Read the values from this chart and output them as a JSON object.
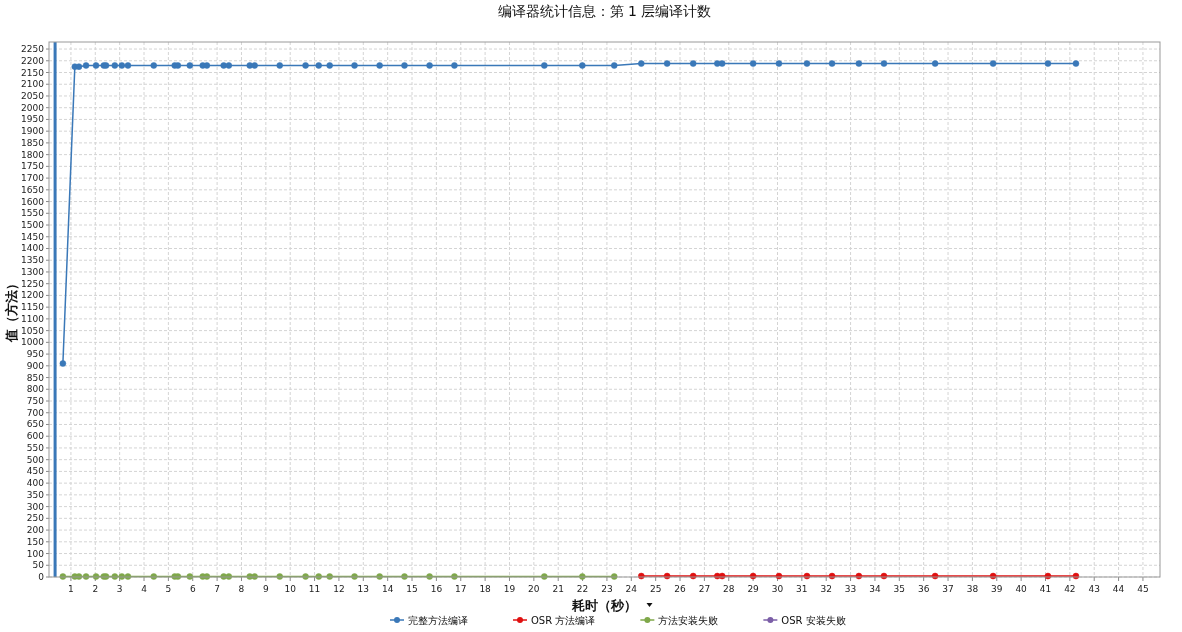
{
  "chart_data": {
    "type": "line",
    "title": "编译器统计信息：第 1 层编译计数",
    "xlabel": "耗时（秒）",
    "ylabel": "值（方法）",
    "x": [
      0.67,
      1.16,
      1.33,
      1.62,
      2.03,
      2.35,
      2.44,
      2.8,
      3.09,
      3.34,
      4.4,
      5.26,
      5.39,
      5.88,
      6.41,
      6.58,
      7.27,
      7.48,
      8.34,
      8.54,
      9.57,
      10.63,
      11.17,
      11.62,
      12.64,
      13.67,
      14.69,
      15.72,
      16.74,
      20.43,
      21.99,
      23.3,
      24.41,
      25.47,
      26.54,
      27.53,
      27.73,
      29.0,
      30.06,
      31.21,
      32.24,
      33.34,
      34.37,
      36.47,
      38.85,
      41.1,
      42.25
    ],
    "series": [
      {
        "name": "完整方法编译",
        "color": "#3a78b8",
        "values": [
          910,
          2175,
          2175,
          2180,
          2180,
          2180,
          2180,
          2180,
          2180,
          2180,
          2180,
          2180,
          2180,
          2180,
          2180,
          2180,
          2180,
          2180,
          2180,
          2180,
          2180,
          2180,
          2180,
          2180,
          2180,
          2180,
          2180,
          2180,
          2180,
          2180,
          2180,
          2180,
          2188,
          2188,
          2188,
          2188,
          2188,
          2188,
          2188,
          2188,
          2188,
          2188,
          2188,
          2188,
          2188,
          2188,
          2188
        ]
      },
      {
        "name": "OSR 方法编译",
        "color": "#e01010",
        "values": [
          null,
          null,
          null,
          null,
          null,
          null,
          null,
          null,
          null,
          null,
          null,
          null,
          null,
          null,
          null,
          null,
          null,
          null,
          null,
          null,
          null,
          null,
          null,
          null,
          null,
          null,
          null,
          null,
          null,
          null,
          null,
          null,
          4,
          4,
          4,
          4,
          4,
          4,
          4,
          4,
          4,
          4,
          4,
          4,
          4,
          4,
          4
        ]
      },
      {
        "name": "方法安装失败",
        "color": "#7fa84a",
        "values": [
          2,
          2,
          2,
          2,
          2,
          2,
          2,
          2,
          2,
          2,
          2,
          2,
          2,
          2,
          2,
          2,
          2,
          2,
          2,
          2,
          2,
          2,
          2,
          2,
          2,
          2,
          2,
          2,
          2,
          2,
          2,
          2,
          null,
          null,
          null,
          null,
          null,
          null,
          null,
          null,
          null,
          null,
          null,
          null,
          null,
          null,
          null
        ]
      },
      {
        "name": "OSR 安装失败",
        "color": "#7b5ea7",
        "values": [
          null,
          null,
          null,
          null,
          null,
          null,
          null,
          null,
          null,
          null,
          null,
          null,
          null,
          null,
          null,
          null,
          null,
          null,
          null,
          null,
          null,
          null,
          null,
          null,
          null,
          null,
          null,
          null,
          null,
          null,
          null,
          null,
          null,
          null,
          null,
          null,
          null,
          null,
          null,
          null,
          null,
          null,
          null,
          null,
          null,
          null,
          null
        ]
      }
    ],
    "xlim": [
      0.1,
      45.7
    ],
    "ylim": [
      0,
      2280
    ],
    "xticks": [
      1,
      2,
      3,
      4,
      5,
      6,
      7,
      8,
      9,
      10,
      11,
      12,
      13,
      14,
      15,
      16,
      17,
      18,
      19,
      20,
      21,
      22,
      23,
      24,
      25,
      26,
      27,
      28,
      29,
      30,
      31,
      32,
      33,
      34,
      35,
      36,
      37,
      38,
      39,
      40,
      41,
      42,
      43,
      44,
      45
    ],
    "yticks": [
      0,
      50,
      100,
      150,
      200,
      250,
      300,
      350,
      400,
      450,
      500,
      550,
      600,
      650,
      700,
      750,
      800,
      850,
      900,
      950,
      1000,
      1050,
      1100,
      1150,
      1200,
      1250,
      1300,
      1350,
      1400,
      1450,
      1500,
      1550,
      1600,
      1650,
      1700,
      1750,
      1800,
      1850,
      1900,
      1950,
      2000,
      2050,
      2100,
      2150,
      2200,
      2250
    ],
    "ref_lines": [
      {
        "axis": "x",
        "value": 0.35,
        "color": "#3a78b8"
      }
    ],
    "grid": true,
    "legend": "bottom",
    "marker": "circle",
    "line_style": "solid"
  }
}
